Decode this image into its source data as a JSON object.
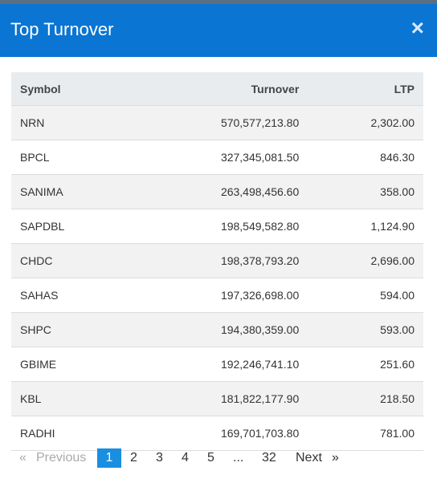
{
  "header": {
    "title": "Top Turnover",
    "close": "×"
  },
  "table": {
    "columns": [
      "Symbol",
      "Turnover",
      "LTP"
    ],
    "rows": [
      [
        "NRN",
        "570,577,213.80",
        "2,302.00"
      ],
      [
        "BPCL",
        "327,345,081.50",
        "846.30"
      ],
      [
        "SANIMA",
        "263,498,456.60",
        "358.00"
      ],
      [
        "SAPDBL",
        "198,549,582.80",
        "1,124.90"
      ],
      [
        "CHDC",
        "198,378,793.20",
        "2,696.00"
      ],
      [
        "SAHAS",
        "197,326,698.00",
        "594.00"
      ],
      [
        "SHPC",
        "194,380,359.00",
        "593.00"
      ],
      [
        "GBIME",
        "192,246,741.10",
        "251.60"
      ],
      [
        "KBL",
        "181,822,177.90",
        "218.50"
      ],
      [
        "RADHI",
        "169,701,703.80",
        "781.00"
      ]
    ]
  },
  "pagination": {
    "prev_arrow": "«",
    "prev": "Previous",
    "pages": [
      "1",
      "2",
      "3",
      "4",
      "5",
      "...",
      "32"
    ],
    "next": "Next",
    "next_arrow": "»"
  }
}
